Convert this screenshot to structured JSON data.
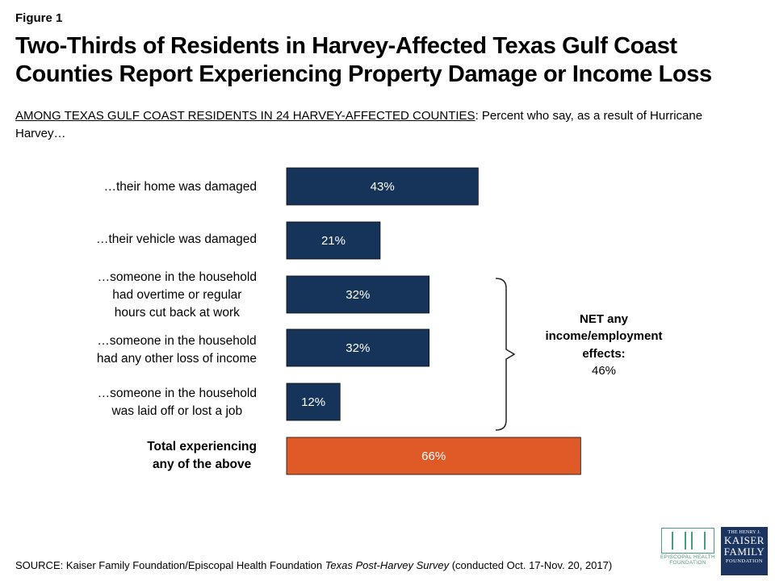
{
  "figure_label": "Figure 1",
  "title": "Two-Thirds of Residents in Harvey-Affected Texas Gulf Coast Counties Report Experiencing Property Damage or Income Loss",
  "subtitle_underlined": "AMONG TEXAS GULF COAST RESIDENTS IN 24 HARVEY-AFFECTED COUNTIES",
  "subtitle_rest": ": Percent who say, as a result of Hurricane Harvey…",
  "chart_data": {
    "type": "bar",
    "orientation": "horizontal",
    "categories": [
      "…their home was damaged",
      "…their vehicle was damaged",
      "…someone in the household had overtime or regular hours cut back at work",
      "…someone in the household had any other loss of income",
      "…someone in the household was laid off or lost a job",
      "Total experiencing any of the above"
    ],
    "values": [
      43,
      21,
      32,
      32,
      12,
      66
    ],
    "value_labels": [
      "43%",
      "21%",
      "32%",
      "32%",
      "12%",
      "66%"
    ],
    "bar_colors": [
      "#16345a",
      "#16345a",
      "#16345a",
      "#16345a",
      "#16345a",
      "#e05a27"
    ],
    "xlim": [
      0,
      100
    ],
    "annotation": {
      "brackets_categories": [
        2,
        3,
        4
      ],
      "title": "NET any income/employment effects:",
      "value": "46%"
    }
  },
  "labels": {
    "c0": "…their home was damaged",
    "c1": "…their vehicle was damaged",
    "c2_l1": "…someone in the household",
    "c2_l2": "had overtime or regular",
    "c2_l3": "hours cut back at work",
    "c3_l1": "…someone in the household",
    "c3_l2": "had any other loss of income",
    "c4_l1": "…someone in the household",
    "c4_l2": "was laid off or lost a job",
    "c5_l1": "Total experiencing",
    "c5_l2": "any of the above"
  },
  "net": {
    "l1": "NET any",
    "l2": "income/employment",
    "l3": "effects:",
    "value": "46%"
  },
  "source": {
    "prefix": "SOURCE: Kaiser Family Foundation/Episcopal Health Foundation ",
    "survey": "Texas Post-Harvey Survey",
    "suffix": " (conducted Oct. 17-Nov. 20, 2017)"
  },
  "logos": {
    "ehf_line1": "EPISCOPAL HEALTH",
    "ehf_line2": "FOUNDATION",
    "ehf_color": "#4d9a7c",
    "kff_line1": "THE HENRY J.",
    "kff_line2": "KAISER",
    "kff_line3": "FAMILY",
    "kff_line4": "FOUNDATION",
    "kff_color": "#1c3560"
  }
}
